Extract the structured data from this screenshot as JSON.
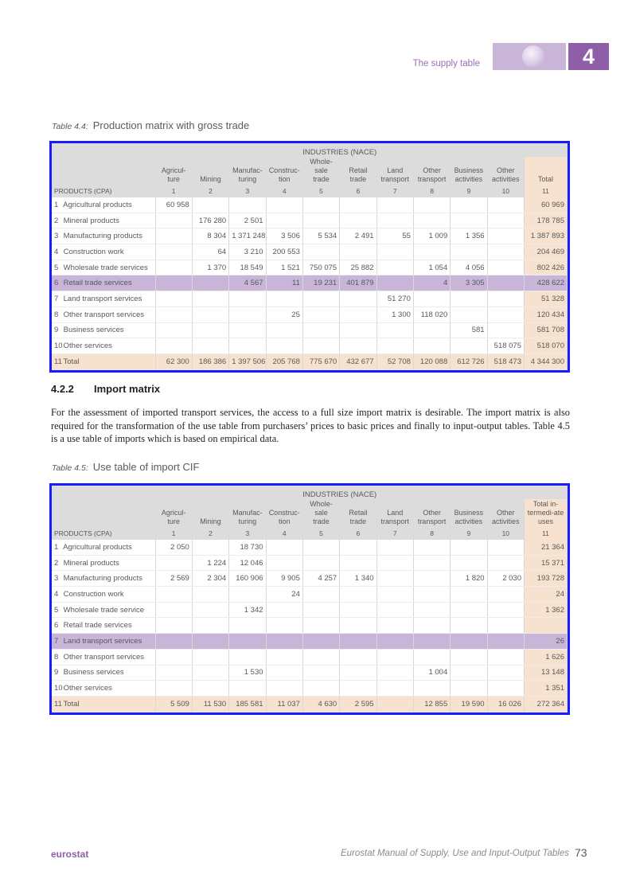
{
  "header": {
    "running_title": "The supply table",
    "chapter_number": "4"
  },
  "table1": {
    "label": "Table 4.4:",
    "title": "Production matrix with gross trade",
    "group_header": "INDUSTRIES (NACE)",
    "row_header": "PRODUCTS (CPA)",
    "columns": [
      "Agricul-ture",
      "Mining",
      "Manufac-turing",
      "Construc-tion",
      "Whole-sale trade",
      "Retail trade",
      "Land transport",
      "Other transport",
      "Business activities",
      "Other activities"
    ],
    "total_label": "Total",
    "codes": [
      "1",
      "2",
      "3",
      "4",
      "5",
      "6",
      "7",
      "8",
      "9",
      "10",
      "11"
    ],
    "rows": [
      {
        "code": "1",
        "label": "Agricultural products",
        "values": [
          "60 958",
          "",
          "",
          "",
          "",
          "",
          "",
          "",
          "",
          "",
          "60 969"
        ]
      },
      {
        "code": "2",
        "label": "Mineral products",
        "values": [
          "",
          "176 280",
          "2 501",
          "",
          "",
          "",
          "",
          "",
          "",
          "",
          "178 785"
        ]
      },
      {
        "code": "3",
        "label": "Manufacturing products",
        "values": [
          "",
          "8 304",
          "1 371 248",
          "3 506",
          "5 534",
          "2 491",
          "55",
          "1 009",
          "1 356",
          "",
          "1 387 893"
        ]
      },
      {
        "code": "4",
        "label": "Construction work",
        "values": [
          "",
          "64",
          "3 210",
          "200 553",
          "",
          "",
          "",
          "",
          "",
          "",
          "204 469"
        ]
      },
      {
        "code": "5",
        "label": "Wholesale trade services",
        "values": [
          "",
          "1 370",
          "18 549",
          "1 521",
          "750 075",
          "25 882",
          "",
          "1 054",
          "4 056",
          "",
          "802 426"
        ]
      },
      {
        "code": "6",
        "label": "Retail trade services",
        "values": [
          "",
          "",
          "4 567",
          "11",
          "19 231",
          "401 879",
          "",
          "4",
          "3 305",
          "",
          "428 622"
        ]
      },
      {
        "code": "7",
        "label": "Land transport services",
        "values": [
          "",
          "",
          "",
          "",
          "",
          "",
          "51 270",
          "",
          "",
          "",
          "51 328"
        ]
      },
      {
        "code": "8",
        "label": "Other transport services",
        "values": [
          "",
          "",
          "",
          "25",
          "",
          "",
          "1 300",
          "118 020",
          "",
          "",
          "120 434"
        ]
      },
      {
        "code": "9",
        "label": "Business services",
        "values": [
          "",
          "",
          "",
          "",
          "",
          "",
          "",
          "",
          "581",
          "",
          "581 708"
        ]
      },
      {
        "code": "10",
        "label": "Other services",
        "values": [
          "",
          "",
          "",
          "",
          "",
          "",
          "",
          "",
          "",
          "518 075",
          "518 070"
        ]
      },
      {
        "code": "11",
        "label": "Total",
        "values": [
          "62 300",
          "186 386",
          "1 397 506",
          "205 768",
          "775 670",
          "432 677",
          "52 708",
          "120 088",
          "612 726",
          "518 473",
          "4 344 300"
        ]
      }
    ]
  },
  "section": {
    "number": "4.2.2",
    "title": "Import matrix",
    "paragraph": "For the assessment of imported transport services, the access to a full size import matrix is desirable. The import matrix is also required for the transformation of the use table from purchasers’ prices to basic prices and finally to input-output tables. Table 4.5 is a use table of imports which is based on empirical data."
  },
  "table2": {
    "label": "Table 4.5:",
    "title": "Use table of import CIF",
    "group_header": "INDUSTRIES (NACE)",
    "row_header": "PRODUCTS (CPA)",
    "columns": [
      "Agricul-ture",
      "Mining",
      "Manufac-turing",
      "Construc-tion",
      "Whole-sale trade",
      "Retail trade",
      "Land transport",
      "Other transport",
      "Business activities",
      "Other activities"
    ],
    "total_label": "Total in-termedi-ate uses",
    "codes": [
      "1",
      "2",
      "3",
      "4",
      "5",
      "6",
      "7",
      "8",
      "9",
      "10",
      "11"
    ],
    "rows": [
      {
        "code": "1",
        "label": "Agricultural products",
        "values": [
          "2 050",
          "",
          "18 730",
          "",
          "",
          "",
          "",
          "",
          "",
          "",
          "21 364"
        ]
      },
      {
        "code": "2",
        "label": "Mineral products",
        "values": [
          "",
          "1 224",
          "12 046",
          "",
          "",
          "",
          "",
          "",
          "",
          "",
          "15 371"
        ]
      },
      {
        "code": "3",
        "label": "Manufacturing products",
        "values": [
          "2 569",
          "2 304",
          "160 906",
          "9 905",
          "4 257",
          "1 340",
          "",
          "",
          "1 820",
          "2 030",
          "193 728"
        ]
      },
      {
        "code": "4",
        "label": "Construction work",
        "values": [
          "",
          "",
          "",
          "24",
          "",
          "",
          "",
          "",
          "",
          "",
          "24"
        ]
      },
      {
        "code": "5",
        "label": "Wholesale trade service",
        "values": [
          "",
          "",
          "1 342",
          "",
          "",
          "",
          "",
          "",
          "",
          "",
          "1 362"
        ]
      },
      {
        "code": "6",
        "label": "Retail trade services",
        "values": [
          "",
          "",
          "",
          "",
          "",
          "",
          "",
          "",
          "",
          "",
          ""
        ]
      },
      {
        "code": "7",
        "label": "Land transport services",
        "values": [
          "",
          "",
          "",
          "",
          "",
          "",
          "",
          "",
          "",
          "",
          "26"
        ]
      },
      {
        "code": "8",
        "label": "Other transport services",
        "values": [
          "",
          "",
          "",
          "",
          "",
          "",
          "",
          "",
          "",
          "",
          "1 626"
        ]
      },
      {
        "code": "9",
        "label": "Business services",
        "values": [
          "",
          "",
          "1 530",
          "",
          "",
          "",
          "",
          "1 004",
          "",
          "",
          "13 148"
        ]
      },
      {
        "code": "10",
        "label": "Other services",
        "values": [
          "",
          "",
          "",
          "",
          "",
          "",
          "",
          "",
          "",
          "",
          "1 351"
        ]
      },
      {
        "code": "11",
        "label": "Total",
        "values": [
          "5 509",
          "11 530",
          "185 581",
          "11 037",
          "4 630",
          "2 595",
          "",
          "12 855",
          "19 590",
          "16 026",
          "272 364"
        ]
      }
    ]
  },
  "footer": {
    "brand": "eurostat",
    "book_title": "Eurostat Manual of Supply, Use and Input-Output Tables",
    "page_number": "73"
  }
}
